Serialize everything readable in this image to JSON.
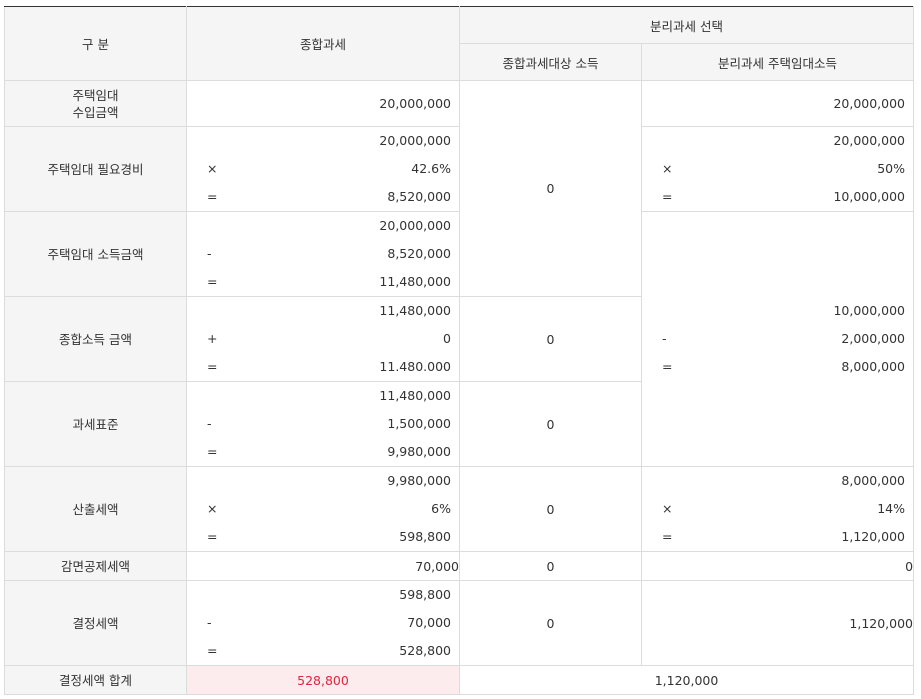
{
  "header": {
    "category": "구 분",
    "comprehensive": "종합과세",
    "separate_choice": "분리과세 선택",
    "comp_target_income": "종합과세대상 소득",
    "separate_rental_income": "분리과세 주택임대소득"
  },
  "rows": {
    "rental_revenue": {
      "label_line1": "주택임대",
      "label_line2": "수입금액",
      "comp_value": "20,000,000",
      "sep_value": "20,000,000"
    },
    "rental_expense": {
      "label": "주택임대 필요경비",
      "comp_lines": [
        {
          "op": "",
          "value": "20,000,000"
        },
        {
          "op": "×",
          "value": "42.6%"
        },
        {
          "op": "=",
          "value": "8,520,000"
        }
      ],
      "sep_lines": [
        {
          "op": "",
          "value": "20,000,000"
        },
        {
          "op": "×",
          "value": "50%"
        },
        {
          "op": "=",
          "value": "10,000,000"
        }
      ],
      "mid_value": "0"
    },
    "rental_income": {
      "label": "주택임대 소득금액",
      "comp_lines": [
        {
          "op": "",
          "value": "20,000,000"
        },
        {
          "op": "-",
          "value": "8,520,000"
        },
        {
          "op": "=",
          "value": "11,480,000"
        }
      ]
    },
    "comprehensive_income": {
      "label": "종합소득 금액",
      "comp_lines": [
        {
          "op": "",
          "value": "11,480,000"
        },
        {
          "op": "+",
          "value": "0"
        },
        {
          "op": "=",
          "value": "11.480.000"
        }
      ],
      "mid_value": "0",
      "sep_lines": [
        {
          "op": "",
          "value": "10,000,000"
        },
        {
          "op": "-",
          "value": "2,000,000"
        },
        {
          "op": "=",
          "value": "8,000,000"
        }
      ]
    },
    "tax_base": {
      "label": "과세표준",
      "comp_lines": [
        {
          "op": "",
          "value": "11,480,000"
        },
        {
          "op": "-",
          "value": "1,500,000"
        },
        {
          "op": "=",
          "value": "9,980,000"
        }
      ],
      "mid_value": "0"
    },
    "computed_tax": {
      "label": "산출세액",
      "comp_lines": [
        {
          "op": "",
          "value": "9,980,000"
        },
        {
          "op": "×",
          "value": "6%"
        },
        {
          "op": "=",
          "value": "598,800"
        }
      ],
      "mid_value": "0",
      "sep_lines": [
        {
          "op": "",
          "value": "8,000,000"
        },
        {
          "op": "×",
          "value": "14%"
        },
        {
          "op": "=",
          "value": "1,120,000"
        }
      ]
    },
    "deduction": {
      "label": "감면공제세액",
      "comp_value": "70,000",
      "mid_value": "0",
      "sep_value": "0"
    },
    "determined_tax": {
      "label": "결정세액",
      "comp_lines": [
        {
          "op": "",
          "value": "598,800"
        },
        {
          "op": "-",
          "value": "70,000"
        },
        {
          "op": "=",
          "value": "528,800"
        }
      ],
      "mid_value": "0",
      "sep_value": "1,120,000"
    },
    "total": {
      "label": "결정세액 합계",
      "comp_value": "528,800",
      "sep_value": "1,120,000"
    }
  },
  "colors": {
    "header_bg": "#f5f5f5",
    "border": "#dcdcdc",
    "top_rule": "#333333",
    "highlight_bg": "#fdecee",
    "highlight_text": "#e0263c"
  }
}
